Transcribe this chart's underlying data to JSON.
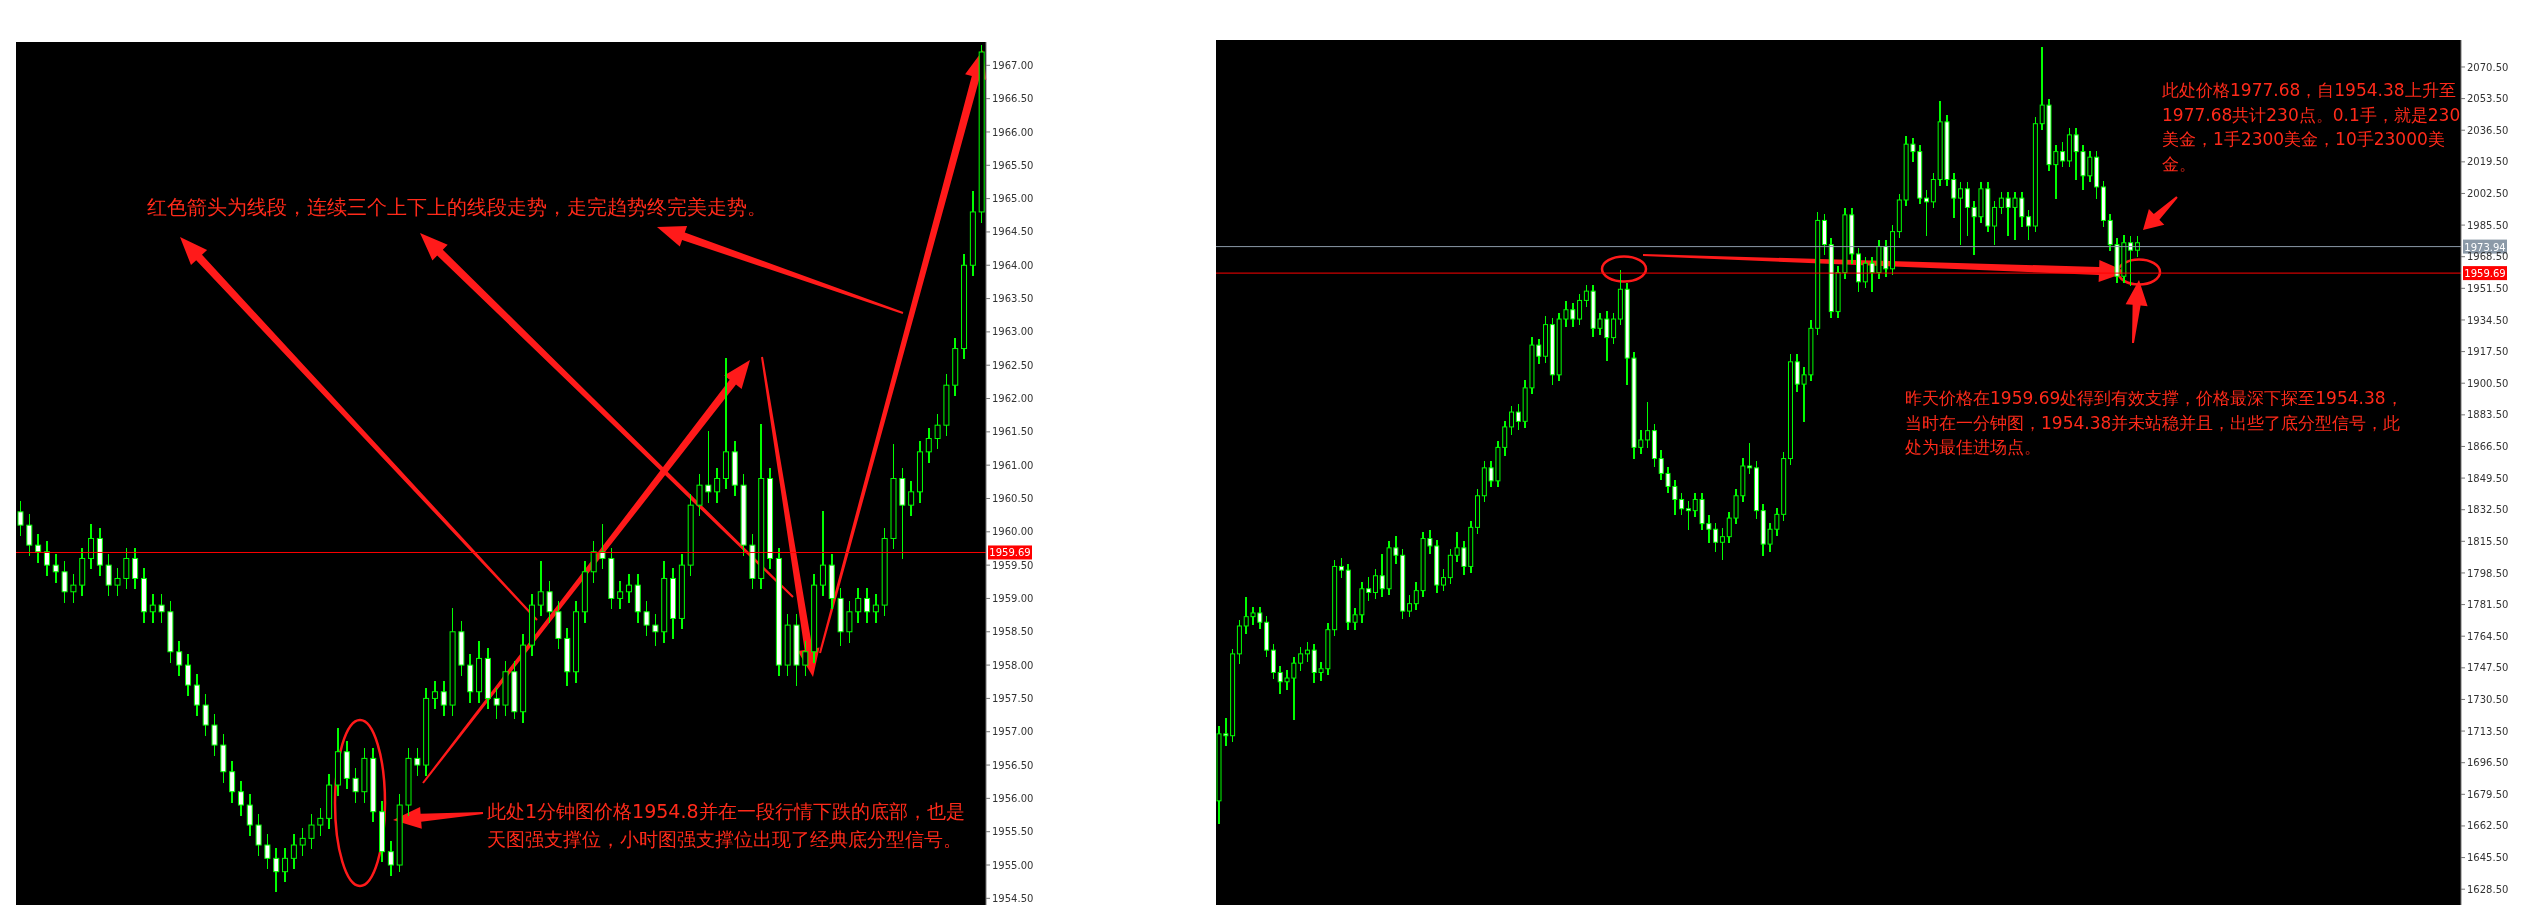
{
  "chart_data": [
    {
      "type": "candlestick",
      "color": "#00ff00",
      "categories": [
        null,
        null,
        null,
        null,
        null,
        null,
        null,
        null,
        null,
        null,
        null,
        null,
        null,
        null,
        null,
        null,
        null,
        null,
        null,
        null,
        null,
        null,
        null,
        null,
        null,
        null,
        null,
        null,
        null,
        null,
        null,
        null,
        null,
        null,
        null,
        null,
        null,
        null,
        null,
        null,
        null,
        null,
        null,
        null,
        null,
        null,
        null,
        null,
        null,
        null,
        null,
        null,
        null,
        null,
        null,
        null,
        null,
        null,
        null,
        null,
        null,
        null,
        null,
        null,
        null,
        null,
        null,
        null,
        null,
        null,
        null,
        null,
        null,
        null,
        null,
        null,
        null,
        null,
        null,
        null,
        null,
        null,
        null,
        null,
        null,
        null,
        null,
        null,
        null,
        null,
        null,
        null,
        null,
        null,
        null,
        null,
        null,
        null,
        null,
        null,
        null,
        null,
        null,
        null,
        null,
        null,
        null,
        null,
        null,
        null
      ],
      "ohlc": [
        [
          1960.3,
          1960.45,
          1959.95,
          1960.1
        ],
        [
          1960.1,
          1960.25,
          1959.65,
          1959.8
        ],
        [
          1959.8,
          1959.95,
          1959.55,
          1959.7
        ],
        [
          1959.7,
          1959.85,
          1959.35,
          1959.5
        ],
        [
          1959.5,
          1959.65,
          1959.25,
          1959.4
        ],
        [
          1959.4,
          1959.55,
          1958.95,
          1959.1
        ],
        [
          1959.1,
          1959.35,
          1958.95,
          1959.2
        ],
        [
          1959.2,
          1959.75,
          1959.05,
          1959.6
        ],
        [
          1959.6,
          1960.1,
          1959.45,
          1959.9
        ],
        [
          1959.9,
          1960.05,
          1959.35,
          1959.5
        ],
        [
          1959.5,
          1959.65,
          1959.05,
          1959.2
        ],
        [
          1959.2,
          1959.45,
          1959.05,
          1959.3
        ],
        [
          1959.3,
          1959.75,
          1959.15,
          1959.6
        ],
        [
          1959.6,
          1959.75,
          1959.15,
          1959.3
        ],
        [
          1959.3,
          1959.45,
          1958.65,
          1958.8
        ],
        [
          1958.8,
          1959.05,
          1958.65,
          1958.9
        ],
        [
          1958.9,
          1959.05,
          1958.65,
          1958.8
        ],
        [
          1958.8,
          1958.95,
          1958.05,
          1958.2
        ],
        [
          1958.2,
          1958.35,
          1957.85,
          1958.0
        ],
        [
          1958.0,
          1958.15,
          1957.55,
          1957.7
        ],
        [
          1957.7,
          1957.85,
          1957.25,
          1957.4
        ],
        [
          1957.4,
          1957.55,
          1956.95,
          1957.1
        ],
        [
          1957.1,
          1957.25,
          1956.65,
          1956.8
        ],
        [
          1956.8,
          1956.95,
          1956.25,
          1956.4
        ],
        [
          1956.4,
          1956.55,
          1955.95,
          1956.1
        ],
        [
          1956.1,
          1956.25,
          1955.75,
          1955.9
        ],
        [
          1955.9,
          1956.05,
          1955.45,
          1955.6
        ],
        [
          1955.6,
          1955.75,
          1955.15,
          1955.3
        ],
        [
          1955.3,
          1955.45,
          1954.95,
          1955.1
        ],
        [
          1955.1,
          1955.25,
          1954.6,
          1954.9
        ],
        [
          1954.9,
          1955.25,
          1954.75,
          1955.1
        ],
        [
          1955.1,
          1955.45,
          1954.95,
          1955.3
        ],
        [
          1955.3,
          1955.55,
          1955.15,
          1955.4
        ],
        [
          1955.4,
          1955.75,
          1955.25,
          1955.6
        ],
        [
          1955.6,
          1955.85,
          1955.45,
          1955.7
        ],
        [
          1955.7,
          1956.35,
          1955.55,
          1956.2
        ],
        [
          1956.2,
          1957.05,
          1956.05,
          1956.7
        ],
        [
          1956.7,
          1956.85,
          1956.15,
          1956.3
        ],
        [
          1956.3,
          1956.45,
          1955.95,
          1956.1
        ],
        [
          1956.1,
          1956.75,
          1955.95,
          1956.6
        ],
        [
          1956.6,
          1956.75,
          1955.65,
          1955.8
        ],
        [
          1955.8,
          1955.95,
          1955.05,
          1955.2
        ],
        [
          1955.2,
          1955.35,
          1954.85,
          1955.0
        ],
        [
          1955.0,
          1956.05,
          1954.9,
          1955.9
        ],
        [
          1955.9,
          1956.75,
          1955.75,
          1956.6
        ],
        [
          1956.6,
          1956.75,
          1956.35,
          1956.5
        ],
        [
          1956.5,
          1957.65,
          1956.35,
          1957.5
        ],
        [
          1957.5,
          1957.75,
          1957.35,
          1957.6
        ],
        [
          1957.6,
          1957.75,
          1957.25,
          1957.4
        ],
        [
          1957.4,
          1958.85,
          1957.25,
          1958.5
        ],
        [
          1958.5,
          1958.65,
          1957.85,
          1958.0
        ],
        [
          1958.0,
          1958.15,
          1957.45,
          1957.6
        ],
        [
          1957.6,
          1958.35,
          1957.45,
          1958.1
        ],
        [
          1958.1,
          1958.25,
          1957.35,
          1957.5
        ],
        [
          1957.5,
          1957.65,
          1957.2,
          1957.4
        ],
        [
          1957.4,
          1958.05,
          1957.25,
          1957.9
        ],
        [
          1957.9,
          1958.05,
          1957.2,
          1957.3
        ],
        [
          1957.3,
          1958.45,
          1957.15,
          1958.3
        ],
        [
          1958.3,
          1959.05,
          1958.15,
          1958.9
        ],
        [
          1958.9,
          1959.55,
          1958.75,
          1959.1
        ],
        [
          1959.1,
          1959.25,
          1958.65,
          1958.8
        ],
        [
          1958.8,
          1958.95,
          1958.25,
          1958.4
        ],
        [
          1958.4,
          1958.55,
          1957.7,
          1957.9
        ],
        [
          1957.9,
          1958.95,
          1957.75,
          1958.8
        ],
        [
          1958.8,
          1959.55,
          1958.65,
          1959.4
        ],
        [
          1959.4,
          1959.85,
          1959.25,
          1959.7
        ],
        [
          1959.7,
          1960.1,
          1959.45,
          1959.6
        ],
        [
          1959.6,
          1959.75,
          1958.85,
          1959.0
        ],
        [
          1959.0,
          1959.25,
          1958.85,
          1959.1
        ],
        [
          1959.1,
          1959.35,
          1958.95,
          1959.2
        ],
        [
          1959.2,
          1959.35,
          1958.65,
          1958.8
        ],
        [
          1958.8,
          1958.95,
          1958.45,
          1958.6
        ],
        [
          1958.6,
          1958.75,
          1958.3,
          1958.5
        ],
        [
          1958.5,
          1959.55,
          1958.35,
          1959.3
        ],
        [
          1959.3,
          1959.45,
          1958.4,
          1958.7
        ],
        [
          1958.7,
          1959.65,
          1958.55,
          1959.5
        ],
        [
          1959.5,
          1960.55,
          1959.35,
          1960.4
        ],
        [
          1960.4,
          1960.85,
          1960.25,
          1960.7
        ],
        [
          1960.7,
          1961.5,
          1960.45,
          1960.6
        ],
        [
          1960.6,
          1960.95,
          1960.45,
          1960.8
        ],
        [
          1960.8,
          1962.6,
          1960.65,
          1961.2
        ],
        [
          1961.2,
          1961.35,
          1960.55,
          1960.7
        ],
        [
          1960.7,
          1960.85,
          1959.65,
          1959.8
        ],
        [
          1959.8,
          1959.95,
          1959.15,
          1959.3
        ],
        [
          1959.3,
          1961.6,
          1959.15,
          1960.8
        ],
        [
          1960.8,
          1960.95,
          1959.45,
          1959.6
        ],
        [
          1959.6,
          1959.75,
          1957.85,
          1958.0
        ],
        [
          1958.0,
          1958.75,
          1957.85,
          1958.6
        ],
        [
          1958.6,
          1958.75,
          1957.7,
          1958.0
        ],
        [
          1958.0,
          1958.35,
          1957.85,
          1958.2
        ],
        [
          1958.2,
          1959.35,
          1958.05,
          1959.2
        ],
        [
          1959.2,
          1960.3,
          1959.05,
          1959.5
        ],
        [
          1959.5,
          1959.65,
          1958.85,
          1959.0
        ],
        [
          1959.0,
          1959.15,
          1958.3,
          1958.5
        ],
        [
          1958.5,
          1958.95,
          1958.35,
          1958.8
        ],
        [
          1958.8,
          1959.15,
          1958.65,
          1959.0
        ],
        [
          1959.0,
          1959.15,
          1958.65,
          1958.8
        ],
        [
          1958.8,
          1959.05,
          1958.65,
          1958.9
        ],
        [
          1958.9,
          1960.05,
          1958.75,
          1959.9
        ],
        [
          1959.9,
          1961.3,
          1959.75,
          1960.8
        ],
        [
          1960.8,
          1960.95,
          1959.6,
          1960.4
        ],
        [
          1960.4,
          1960.75,
          1960.25,
          1960.6
        ],
        [
          1960.6,
          1961.35,
          1960.45,
          1961.2
        ],
        [
          1961.2,
          1961.55,
          1961.05,
          1961.4
        ],
        [
          1961.4,
          1961.75,
          1961.25,
          1961.6
        ],
        [
          1961.6,
          1962.35,
          1961.45,
          1962.2
        ],
        [
          1962.2,
          1962.9,
          1962.05,
          1962.75
        ],
        [
          1962.75,
          1964.15,
          1962.6,
          1964.0
        ],
        [
          1964.0,
          1965.1,
          1963.85,
          1964.8
        ],
        [
          1964.8,
          1967.3,
          1964.65,
          1967.2
        ]
      ],
      "ylim": [
        1954.4,
        1967.35
      ],
      "yticks": [
        {
          "value": 1954.5,
          "label": "1954.50"
        },
        {
          "value": 1955,
          "label": "1955.00"
        },
        {
          "value": 1955.5,
          "label": "1955.50"
        },
        {
          "value": 1956,
          "label": "1956.00"
        },
        {
          "value": 1956.5,
          "label": "1956.50"
        },
        {
          "value": 1957,
          "label": "1957.00"
        },
        {
          "value": 1957.5,
          "label": "1957.50"
        },
        {
          "value": 1958,
          "label": "1958.00"
        },
        {
          "value": 1958.5,
          "label": "1958.50"
        },
        {
          "value": 1959,
          "label": "1959.00"
        },
        {
          "value": 1959.5,
          "label": "1959.50"
        },
        {
          "value": 1960,
          "label": "1960.00"
        },
        {
          "value": 1960.5,
          "label": "1960.50"
        },
        {
          "value": 1961,
          "label": "1961.00"
        },
        {
          "value": 1961.5,
          "label": "1961.50"
        },
        {
          "value": 1962,
          "label": "1962.00"
        },
        {
          "value": 1962.5,
          "label": "1962.50"
        },
        {
          "value": 1963,
          "label": "1963.00"
        },
        {
          "value": 1963.5,
          "label": "1963.50"
        },
        {
          "value": 1964,
          "label": "1964.00"
        },
        {
          "value": 1964.5,
          "label": "1964.50"
        },
        {
          "value": 1965,
          "label": "1965.00"
        },
        {
          "value": 1965.5,
          "label": "1965.50"
        },
        {
          "value": 1966,
          "label": "1966.00"
        },
        {
          "value": 1966.5,
          "label": "1966.50"
        },
        {
          "value": 1967,
          "label": "1967.00"
        }
      ],
      "ref_lines": [
        {
          "axis": "y",
          "value": 1959.69,
          "label": "1959.69",
          "color": "#ff0000"
        }
      ],
      "annotations": [
        "红色箭头为线段，连续三个上下上的线段走势，走完趋势终完美走势。",
        "此处1分钟图价格1954.8并在一段行情下跌的底部，也是天图强支撑位，小时图强支撑位出现了经典底分型信号。"
      ]
    },
    {
      "type": "candlestick",
      "color": "#00ff00",
      "categories": [
        null,
        null,
        null,
        null,
        null,
        null,
        null,
        null,
        null,
        null,
        null,
        null,
        null,
        null,
        null,
        null,
        null,
        null,
        null,
        null,
        null,
        null,
        null,
        null,
        null,
        null,
        null,
        null,
        null,
        null,
        null,
        null,
        null,
        null,
        null,
        null,
        null,
        null,
        null,
        null,
        null,
        null,
        null,
        null,
        null,
        null,
        null,
        null,
        null,
        null,
        null,
        null,
        null,
        null,
        null,
        null,
        null,
        null,
        null,
        null,
        null,
        null,
        null,
        null,
        null,
        null,
        null,
        null,
        null,
        null,
        null,
        null,
        null,
        null,
        null,
        null,
        null,
        null,
        null,
        null,
        null,
        null,
        null,
        null,
        null,
        null,
        null,
        null,
        null,
        null,
        null,
        null,
        null,
        null,
        null,
        null,
        null,
        null,
        null,
        null,
        null,
        null,
        null,
        null,
        null,
        null,
        null,
        null,
        null,
        null,
        null,
        null,
        null,
        null,
        null,
        null,
        null,
        null,
        null,
        null,
        null,
        null,
        null,
        null,
        null,
        null,
        null,
        null,
        null,
        null,
        null,
        null,
        null,
        null,
        null,
        null,
        null,
        null,
        null,
        null,
        null,
        null,
        null,
        null,
        null,
        null,
        null,
        null,
        null,
        null,
        null,
        null,
        null,
        null,
        null,
        null,
        null,
        null,
        null,
        null,
        null,
        null,
        null,
        null,
        null,
        null,
        null,
        null,
        null,
        null,
        null,
        null,
        null,
        null,
        null,
        null,
        null,
        null,
        null,
        null,
        null,
        null,
        null
      ],
      "ohlc": [
        [
          1676,
          1716,
          1664,
          1712
        ],
        [
          1712,
          1720,
          1706,
          1711
        ],
        [
          1711,
          1757,
          1708,
          1755
        ],
        [
          1755,
          1773,
          1750,
          1770
        ],
        [
          1770,
          1785,
          1766,
          1775
        ],
        [
          1775,
          1780,
          1771,
          1777
        ],
        [
          1777,
          1780,
          1769,
          1772
        ],
        [
          1772,
          1775,
          1754,
          1757
        ],
        [
          1757,
          1760,
          1742,
          1745
        ],
        [
          1745,
          1748,
          1734,
          1740
        ],
        [
          1740,
          1746,
          1736,
          1742
        ],
        [
          1742,
          1753,
          1720,
          1750
        ],
        [
          1750,
          1758,
          1746,
          1755
        ],
        [
          1755,
          1761,
          1751,
          1757
        ],
        [
          1757,
          1760,
          1740,
          1745
        ],
        [
          1745,
          1750,
          1741,
          1747
        ],
        [
          1747,
          1771,
          1744,
          1768
        ],
        [
          1768,
          1805,
          1765,
          1802
        ],
        [
          1802,
          1806,
          1796,
          1800
        ],
        [
          1800,
          1803,
          1768,
          1772
        ],
        [
          1772,
          1779,
          1768,
          1776
        ],
        [
          1776,
          1793,
          1772,
          1790
        ],
        [
          1790,
          1796,
          1784,
          1788
        ],
        [
          1788,
          1800,
          1785,
          1797
        ],
        [
          1797,
          1808,
          1786,
          1790
        ],
        [
          1790,
          1815,
          1787,
          1812
        ],
        [
          1812,
          1818,
          1804,
          1808
        ],
        [
          1808,
          1811,
          1774,
          1778
        ],
        [
          1778,
          1786,
          1775,
          1782
        ],
        [
          1782,
          1793,
          1779,
          1789
        ],
        [
          1789,
          1820,
          1786,
          1817
        ],
        [
          1817,
          1821,
          1809,
          1813
        ],
        [
          1813,
          1816,
          1788,
          1792
        ],
        [
          1792,
          1800,
          1789,
          1796
        ],
        [
          1796,
          1811,
          1793,
          1808
        ],
        [
          1808,
          1820,
          1805,
          1812
        ],
        [
          1812,
          1815,
          1798,
          1802
        ],
        [
          1802,
          1826,
          1799,
          1823
        ],
        [
          1823,
          1843,
          1820,
          1840
        ],
        [
          1840,
          1858,
          1837,
          1855
        ],
        [
          1855,
          1858,
          1845,
          1848
        ],
        [
          1848,
          1869,
          1845,
          1866
        ],
        [
          1866,
          1880,
          1862,
          1877
        ],
        [
          1877,
          1888,
          1873,
          1885
        ],
        [
          1885,
          1889,
          1876,
          1880
        ],
        [
          1880,
          1902,
          1877,
          1898
        ],
        [
          1898,
          1925,
          1895,
          1921
        ],
        [
          1921,
          1924,
          1911,
          1915
        ],
        [
          1915,
          1936,
          1912,
          1932
        ],
        [
          1932,
          1935,
          1900,
          1905
        ],
        [
          1905,
          1938,
          1902,
          1935
        ],
        [
          1935,
          1944,
          1931,
          1940
        ],
        [
          1940,
          1943,
          1931,
          1935
        ],
        [
          1935,
          1948,
          1932,
          1945
        ],
        [
          1945,
          1953,
          1942,
          1950
        ],
        [
          1950,
          1953,
          1926,
          1930
        ],
        [
          1930,
          1938,
          1927,
          1935
        ],
        [
          1935,
          1939,
          1913,
          1925
        ],
        [
          1925,
          1938,
          1922,
          1935
        ],
        [
          1935,
          1961,
          1932,
          1951
        ],
        [
          1951,
          1954,
          1900,
          1914
        ],
        [
          1914,
          1917,
          1860,
          1866
        ],
        [
          1866,
          1875,
          1863,
          1870
        ],
        [
          1870,
          1890,
          1866,
          1875
        ],
        [
          1875,
          1878,
          1856,
          1860
        ],
        [
          1860,
          1864,
          1849,
          1852
        ],
        [
          1852,
          1855,
          1842,
          1845
        ],
        [
          1845,
          1848,
          1830,
          1838
        ],
        [
          1838,
          1841,
          1830,
          1833
        ],
        [
          1833,
          1837,
          1822,
          1832
        ],
        [
          1832,
          1841,
          1829,
          1838
        ],
        [
          1838,
          1841,
          1822,
          1825
        ],
        [
          1825,
          1829,
          1815,
          1822
        ],
        [
          1822,
          1825,
          1810,
          1815
        ],
        [
          1815,
          1822,
          1806,
          1818
        ],
        [
          1818,
          1831,
          1815,
          1828
        ],
        [
          1828,
          1843,
          1825,
          1840
        ],
        [
          1840,
          1860,
          1837,
          1856
        ],
        [
          1856,
          1868,
          1852,
          1855
        ],
        [
          1855,
          1858,
          1828,
          1832
        ],
        [
          1832,
          1835,
          1808,
          1814
        ],
        [
          1814,
          1825,
          1810,
          1822
        ],
        [
          1822,
          1833,
          1819,
          1830
        ],
        [
          1830,
          1863,
          1827,
          1860
        ],
        [
          1860,
          1916,
          1857,
          1912
        ],
        [
          1912,
          1916,
          1896,
          1900
        ],
        [
          1900,
          1909,
          1880,
          1905
        ],
        [
          1905,
          1934,
          1902,
          1930
        ],
        [
          1930,
          1992,
          1927,
          1988
        ],
        [
          1988,
          1991,
          1970,
          1975
        ],
        [
          1975,
          1978,
          1936,
          1939
        ],
        [
          1939,
          1963,
          1936,
          1960
        ],
        [
          1960,
          1994,
          1957,
          1991
        ],
        [
          1991,
          1994,
          1965,
          1970
        ],
        [
          1970,
          1973,
          1950,
          1955
        ],
        [
          1955,
          1968,
          1952,
          1965
        ],
        [
          1965,
          1968,
          1950,
          1960
        ],
        [
          1960,
          1977,
          1957,
          1974
        ],
        [
          1974,
          1977,
          1958,
          1962
        ],
        [
          1962,
          1985,
          1959,
          1982
        ],
        [
          1982,
          2002,
          1979,
          1999
        ],
        [
          1999,
          2033,
          1996,
          2029
        ],
        [
          2029,
          2032,
          2020,
          2025
        ],
        [
          2025,
          2028,
          1997,
          2000
        ],
        [
          2000,
          2004,
          1980,
          1998
        ],
        [
          1998,
          2013,
          1995,
          2010
        ],
        [
          2010,
          2052,
          2007,
          2041
        ],
        [
          2041,
          2044,
          2007,
          2010
        ],
        [
          2010,
          2013,
          1990,
          2000
        ],
        [
          2000,
          2008,
          1975,
          2005
        ],
        [
          2005,
          2008,
          1980,
          1995
        ],
        [
          1995,
          1998,
          1970,
          1990
        ],
        [
          1990,
          2008,
          1987,
          2005
        ],
        [
          2005,
          2008,
          1982,
          1985
        ],
        [
          1985,
          1998,
          1975,
          1995
        ],
        [
          1995,
          2003,
          1992,
          2000
        ],
        [
          2000,
          2003,
          1980,
          1995
        ],
        [
          1995,
          2003,
          1978,
          2000
        ],
        [
          2000,
          2003,
          1985,
          1990
        ],
        [
          1990,
          1993,
          1978,
          1985
        ],
        [
          1985,
          2043,
          1982,
          2040
        ],
        [
          2040,
          2081,
          2037,
          2050
        ],
        [
          2050,
          2053,
          2015,
          2018
        ],
        [
          2018,
          2028,
          2000,
          2025
        ],
        [
          2025,
          2030,
          2017,
          2020
        ],
        [
          2020,
          2037,
          2017,
          2034
        ],
        [
          2034,
          2037,
          2010,
          2025
        ],
        [
          2025,
          2028,
          2005,
          2012
        ],
        [
          2012,
          2025,
          2009,
          2022
        ],
        [
          2022,
          2025,
          2000,
          2006
        ],
        [
          2006,
          2009,
          1985,
          1988
        ],
        [
          1988,
          1991,
          1972,
          1975
        ],
        [
          1975,
          1978,
          1955,
          1958
        ],
        [
          1958,
          1980,
          1955,
          1976
        ],
        [
          1976,
          1979,
          1953,
          1972
        ],
        [
          1972,
          1979,
          1969,
          1976
        ],
        null,
        null,
        null,
        null,
        null,
        null,
        null,
        null,
        null,
        null,
        null,
        null,
        null,
        null,
        null,
        null,
        null,
        null,
        null,
        null,
        null,
        null,
        null,
        null,
        null,
        null,
        null,
        null,
        null,
        null,
        null,
        null,
        null,
        null,
        null,
        null,
        null,
        null,
        null,
        null,
        null,
        null,
        null,
        null,
        null,
        null,
        null
      ],
      "ylim": [
        1620,
        2085
      ],
      "yticks": [
        {
          "value": 1628.5,
          "label": "1628.50"
        },
        {
          "value": 1645.5,
          "label": "1645.50"
        },
        {
          "value": 1662.5,
          "label": "1662.50"
        },
        {
          "value": 1679.5,
          "label": "1679.50"
        },
        {
          "value": 1696.5,
          "label": "1696.50"
        },
        {
          "value": 1713.5,
          "label": "1713.50"
        },
        {
          "value": 1730.5,
          "label": "1730.50"
        },
        {
          "value": 1747.5,
          "label": "1747.50"
        },
        {
          "value": 1764.5,
          "label": "1764.50"
        },
        {
          "value": 1781.5,
          "label": "1781.50"
        },
        {
          "value": 1798.5,
          "label": "1798.50"
        },
        {
          "value": 1815.5,
          "label": "1815.50"
        },
        {
          "value": 1832.5,
          "label": "1832.50"
        },
        {
          "value": 1849.5,
          "label": "1849.50"
        },
        {
          "value": 1866.5,
          "label": "1866.50"
        },
        {
          "value": 1883.5,
          "label": "1883.50"
        },
        {
          "value": 1900.5,
          "label": "1900.50"
        },
        {
          "value": 1917.5,
          "label": "1917.50"
        },
        {
          "value": 1934.5,
          "label": "1934.50"
        },
        {
          "value": 1951.5,
          "label": "1951.50"
        },
        {
          "value": 1968.5,
          "label": "1968.50"
        },
        {
          "value": 1985.5,
          "label": "1985.50"
        },
        {
          "value": 2002.5,
          "label": "2002.50"
        },
        {
          "value": 2019.5,
          "label": "2019.50"
        },
        {
          "value": 2036.5,
          "label": "2036.50"
        },
        {
          "value": 2053.5,
          "label": "2053.50"
        },
        {
          "value": 2070.5,
          "label": "2070.50"
        }
      ],
      "ref_lines": [
        {
          "axis": "y",
          "value": 1973.94,
          "label": "1973.94",
          "color": "#8c9aa8"
        },
        {
          "axis": "y",
          "value": 1959.69,
          "label": "1959.69",
          "color": "#ff0000"
        }
      ],
      "annotations": [
        "此处价格1977.68，自1954.38上升至1977.68共计230点。0.1手，就是230美金，1手2300美金，10手23000美金。",
        "昨天价格在1959.69处得到有效支撑，价格最深下探至1954.38，当时在一分钟图，1954.38并未站稳并且，出些了底分型信号，此处为最佳进场点。"
      ]
    }
  ]
}
